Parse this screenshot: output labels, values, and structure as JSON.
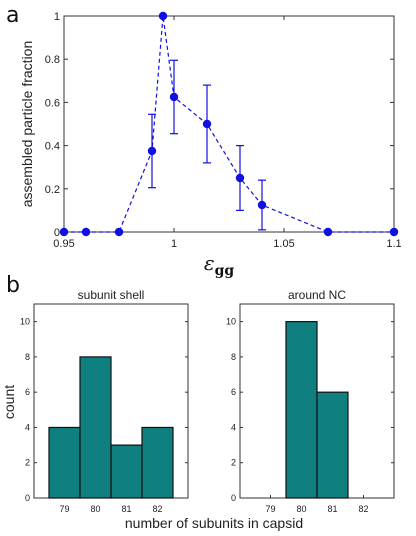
{
  "figure": {
    "panel_a_label": "a",
    "panel_b_label": "b"
  },
  "chart_data": [
    {
      "type": "line",
      "xlabel_main": "ε",
      "xlabel_sub": "gg",
      "ylabel": "assembled particle fraction",
      "xlim": [
        0.95,
        1.1
      ],
      "ylim": [
        0,
        1
      ],
      "xticks": [
        0.95,
        1.0,
        1.05,
        1.1
      ],
      "xtick_labels": [
        "0.95",
        "1",
        "1.05",
        "1.1"
      ],
      "yticks": [
        0,
        0.2,
        0.4,
        0.6,
        0.8,
        1
      ],
      "ytick_labels": [
        "0",
        "0.2",
        "0.4",
        "0.6",
        "0.8",
        "1"
      ],
      "grid": false,
      "series": [
        {
          "color": "#1010e0",
          "line_style": "dashed",
          "marker": "circle",
          "x": [
            0.95,
            0.96,
            0.975,
            0.99,
            0.995,
            1.0,
            1.015,
            1.03,
            1.04,
            1.07,
            1.1
          ],
          "y": [
            0,
            0,
            0,
            0.375,
            1.0,
            0.625,
            0.5,
            0.25,
            0.125,
            0,
            0
          ],
          "err": [
            0,
            0,
            0,
            0.17,
            0,
            0.17,
            0.18,
            0.15,
            0.115,
            0,
            0
          ]
        }
      ]
    },
    {
      "type": "bar",
      "title": "subunit shell",
      "xlabel": "",
      "ylabel": "count",
      "categories": [
        "79",
        "80",
        "81",
        "82"
      ],
      "values": [
        4,
        8,
        3,
        4
      ],
      "ylim": [
        0,
        11
      ],
      "yticks": [
        0,
        2,
        4,
        6,
        8,
        10
      ],
      "ytick_labels": [
        "0",
        "2",
        "4",
        "6",
        "8",
        "10"
      ],
      "bar_color": "#0f7f7f"
    },
    {
      "type": "bar",
      "title": "around NC",
      "xlabel": "number of subunits in capsid",
      "ylabel": "",
      "categories": [
        "79",
        "80",
        "81",
        "82"
      ],
      "values": [
        0,
        10,
        6,
        0
      ],
      "ylim": [
        0,
        11
      ],
      "yticks": [
        0,
        2,
        4,
        6,
        8,
        10
      ],
      "ytick_labels": [
        "0",
        "2",
        "4",
        "6",
        "8",
        "10"
      ],
      "bar_color": "#0f7f7f"
    }
  ]
}
